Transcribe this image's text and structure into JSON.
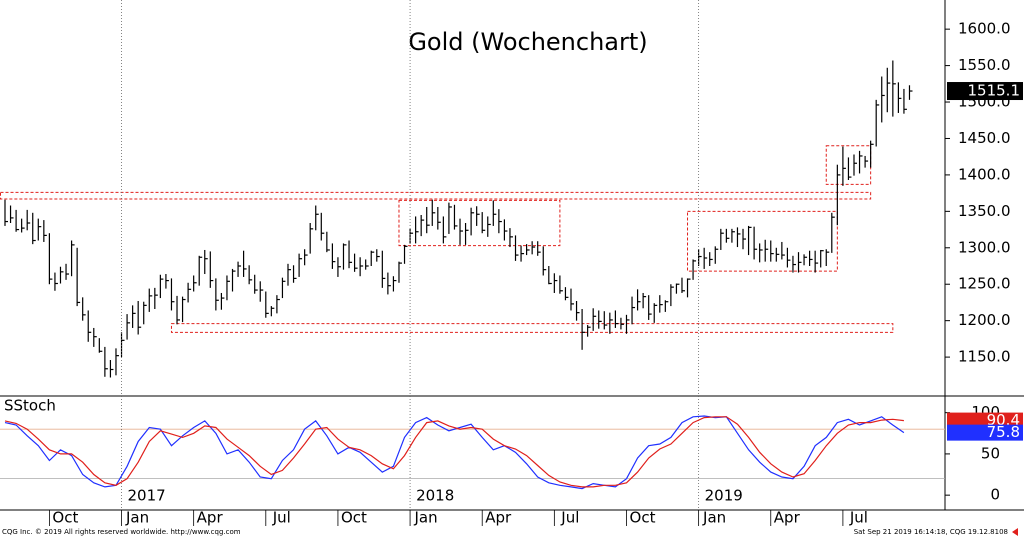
{
  "chart_data": [
    {
      "type": "ohlc",
      "title": "Gold (Wochenchart)",
      "color": "#000000",
      "grid": false,
      "xlim": [
        -0.9,
        169.4
      ],
      "ylim": [
        1098,
        1640
      ],
      "yticks": [
        {
          "value": 1150,
          "label": "1150.0"
        },
        {
          "value": 1200,
          "label": "1200.0"
        },
        {
          "value": 1250,
          "label": "1250.0"
        },
        {
          "value": 1300,
          "label": "1300.0"
        },
        {
          "value": 1350,
          "label": "1350.0"
        },
        {
          "value": 1400,
          "label": "1400.0"
        },
        {
          "value": 1450,
          "label": "1450.0"
        },
        {
          "value": 1500,
          "label": "1500.0"
        },
        {
          "value": 1550,
          "label": "1550.0"
        },
        {
          "value": 1600,
          "label": "1600.0"
        }
      ],
      "high": [
        1366,
        1358,
        1352,
        1340,
        1352,
        1348,
        1340,
        1338,
        1320,
        1266,
        1274,
        1278,
        1310,
        1300,
        1232,
        1214,
        1190,
        1176,
        1164,
        1146,
        1162,
        1184,
        1209,
        1221,
        1227,
        1226,
        1244,
        1245,
        1263,
        1264,
        1258,
        1234,
        1233,
        1252,
        1262,
        1289,
        1297,
        1295,
        1258,
        1238,
        1262,
        1271,
        1281,
        1296,
        1276,
        1263,
        1254,
        1240,
        1220,
        1235,
        1259,
        1278,
        1276,
        1292,
        1298,
        1334,
        1358,
        1348,
        1322,
        1306,
        1287,
        1306,
        1310,
        1292,
        1287,
        1284,
        1296,
        1298,
        1296,
        1266,
        1261,
        1281,
        1304,
        1326,
        1343,
        1345,
        1356,
        1366,
        1356,
        1343,
        1362,
        1359,
        1340,
        1334,
        1355,
        1357,
        1349,
        1343,
        1365,
        1353,
        1339,
        1327,
        1317,
        1303,
        1305,
        1309,
        1309,
        1302,
        1275,
        1265,
        1262,
        1246,
        1244,
        1227,
        1216,
        1194,
        1217,
        1214,
        1213,
        1211,
        1214,
        1204,
        1208,
        1233,
        1243,
        1238,
        1235,
        1224,
        1235,
        1228,
        1250,
        1251,
        1259,
        1258,
        1284,
        1298,
        1300,
        1294,
        1302,
        1326,
        1326,
        1326,
        1328,
        1326,
        1330,
        1329,
        1306,
        1311,
        1310,
        1300,
        1308,
        1300,
        1289,
        1294,
        1291,
        1296,
        1296,
        1297,
        1298,
        1348,
        1414,
        1439,
        1424,
        1428,
        1433,
        1426,
        1447,
        1503,
        1535,
        1547,
        1557,
        1527,
        1518,
        1523
      ],
      "low": [
        1330,
        1334,
        1322,
        1321,
        1324,
        1305,
        1310,
        1308,
        1250,
        1241,
        1251,
        1256,
        1261,
        1220,
        1200,
        1171,
        1164,
        1156,
        1123,
        1122,
        1125,
        1150,
        1174,
        1190,
        1181,
        1195,
        1212,
        1216,
        1231,
        1244,
        1214,
        1195,
        1198,
        1225,
        1240,
        1248,
        1264,
        1245,
        1214,
        1215,
        1228,
        1240,
        1260,
        1260,
        1250,
        1237,
        1226,
        1204,
        1206,
        1210,
        1231,
        1248,
        1252,
        1260,
        1276,
        1292,
        1324,
        1310,
        1294,
        1271,
        1260,
        1270,
        1272,
        1267,
        1261,
        1270,
        1275,
        1281,
        1245,
        1236,
        1240,
        1252,
        1278,
        1306,
        1306,
        1316,
        1320,
        1330,
        1325,
        1306,
        1319,
        1325,
        1304,
        1304,
        1317,
        1330,
        1320,
        1315,
        1330,
        1320,
        1310,
        1301,
        1282,
        1281,
        1290,
        1291,
        1289,
        1262,
        1250,
        1238,
        1237,
        1228,
        1214,
        1200,
        1160,
        1178,
        1186,
        1189,
        1188,
        1182,
        1190,
        1188,
        1182,
        1195,
        1214,
        1217,
        1201,
        1197,
        1211,
        1212,
        1220,
        1237,
        1238,
        1232,
        1256,
        1275,
        1271,
        1275,
        1278,
        1297,
        1307,
        1307,
        1301,
        1298,
        1290,
        1284,
        1280,
        1281,
        1281,
        1281,
        1284,
        1273,
        1266,
        1266,
        1276,
        1275,
        1266,
        1273,
        1275,
        1293,
        1331,
        1385,
        1393,
        1399,
        1402,
        1410,
        1410,
        1439,
        1472,
        1486,
        1480,
        1485,
        1484,
        1503
      ],
      "close": [
        1336,
        1341,
        1325,
        1327,
        1334,
        1310,
        1329,
        1317,
        1257,
        1251,
        1267,
        1264,
        1304,
        1225,
        1208,
        1184,
        1178,
        1158,
        1134,
        1133,
        1152,
        1173,
        1197,
        1210,
        1191,
        1221,
        1234,
        1235,
        1257,
        1255,
        1226,
        1201,
        1229,
        1243,
        1252,
        1287,
        1285,
        1255,
        1228,
        1231,
        1254,
        1268,
        1275,
        1271,
        1256,
        1242,
        1242,
        1210,
        1217,
        1229,
        1254,
        1270,
        1258,
        1285,
        1290,
        1326,
        1346,
        1320,
        1297,
        1281,
        1274,
        1304,
        1280,
        1272,
        1275,
        1275,
        1294,
        1288,
        1258,
        1248,
        1255,
        1279,
        1302,
        1320,
        1322,
        1338,
        1331,
        1348,
        1335,
        1315,
        1356,
        1330,
        1323,
        1324,
        1348,
        1346,
        1324,
        1332,
        1346,
        1336,
        1323,
        1315,
        1290,
        1292,
        1297,
        1301,
        1294,
        1270,
        1251,
        1255,
        1241,
        1232,
        1223,
        1211,
        1184,
        1191,
        1206,
        1199,
        1194,
        1201,
        1196,
        1195,
        1201,
        1218,
        1226,
        1233,
        1209,
        1221,
        1222,
        1226,
        1246,
        1250,
        1241,
        1257,
        1282,
        1288,
        1286,
        1284,
        1298,
        1320,
        1313,
        1322,
        1319,
        1312,
        1328,
        1298,
        1297,
        1298,
        1292,
        1291,
        1290,
        1283,
        1277,
        1280,
        1287,
        1284,
        1279,
        1296,
        1294,
        1342,
        1400,
        1409,
        1397,
        1416,
        1426,
        1419,
        1442,
        1496,
        1509,
        1526,
        1525,
        1505,
        1490,
        1515.1
      ],
      "boxes": [
        {
          "x": [
            -1,
            156
          ],
          "y": [
            1367,
            1376
          ]
        },
        {
          "x": [
            30,
            160
          ],
          "y": [
            1184,
            1196
          ]
        },
        {
          "x": [
            71,
            100
          ],
          "y": [
            1303,
            1365
          ]
        },
        {
          "x": [
            123,
            150
          ],
          "y": [
            1268,
            1350
          ]
        },
        {
          "x": [
            148,
            156
          ],
          "y": [
            1387,
            1440
          ]
        }
      ],
      "box_color": "#e0201c"
    },
    {
      "type": "line",
      "title": "SStoch",
      "xlim": [
        -0.9,
        169.4
      ],
      "ylim": [
        -18,
        119
      ],
      "yticks": [
        0,
        50,
        100
      ],
      "hlines": [
        80,
        20
      ],
      "x": [
        0,
        2,
        4,
        6,
        8,
        10,
        12,
        14,
        16,
        18,
        20,
        22,
        24,
        26,
        28,
        30,
        32,
        34,
        36,
        38,
        40,
        42,
        44,
        46,
        48,
        50,
        52,
        54,
        56,
        58,
        60,
        62,
        64,
        66,
        68,
        70,
        72,
        74,
        76,
        78,
        80,
        82,
        84,
        86,
        88,
        90,
        92,
        94,
        96,
        98,
        100,
        102,
        104,
        106,
        108,
        110,
        112,
        114,
        116,
        118,
        120,
        122,
        124,
        126,
        128,
        130,
        132,
        134,
        136,
        138,
        140,
        142,
        144,
        146,
        148,
        150,
        152,
        154,
        156,
        158,
        160,
        162
      ],
      "series": [
        {
          "color": "#2030ff",
          "values": [
            88,
            85,
            72,
            60,
            42,
            55,
            48,
            25,
            15,
            10,
            12,
            35,
            65,
            82,
            80,
            60,
            72,
            82,
            90,
            75,
            50,
            55,
            40,
            22,
            20,
            42,
            55,
            80,
            90,
            72,
            50,
            58,
            52,
            40,
            28,
            35,
            70,
            88,
            94,
            85,
            78,
            82,
            86,
            70,
            55,
            60,
            52,
            38,
            22,
            15,
            12,
            10,
            8,
            14,
            12,
            10,
            20,
            45,
            60,
            62,
            70,
            88,
            95,
            96,
            94,
            95,
            75,
            55,
            40,
            28,
            22,
            20,
            35,
            60,
            70,
            88,
            92,
            85,
            90,
            95,
            85,
            75.8
          ]
        },
        {
          "color": "#e0201c",
          "values": [
            90,
            87,
            80,
            68,
            55,
            50,
            50,
            40,
            25,
            15,
            12,
            20,
            40,
            65,
            78,
            74,
            70,
            75,
            84,
            82,
            68,
            58,
            48,
            35,
            25,
            30,
            45,
            62,
            80,
            82,
            68,
            58,
            55,
            48,
            38,
            32,
            48,
            70,
            88,
            90,
            84,
            80,
            82,
            80,
            68,
            60,
            56,
            48,
            36,
            24,
            16,
            12,
            10,
            10,
            12,
            12,
            15,
            28,
            45,
            56,
            62,
            75,
            88,
            94,
            95,
            95,
            86,
            70,
            52,
            38,
            28,
            22,
            26,
            42,
            60,
            75,
            85,
            88,
            88,
            91,
            92,
            90.4
          ]
        }
      ],
      "xticks": [
        {
          "value": 8,
          "label": "Oct"
        },
        {
          "value": 21,
          "label": "Jan"
        },
        {
          "value": 34,
          "label": "Apr"
        },
        {
          "value": 47,
          "label": "Jul"
        },
        {
          "value": 60,
          "label": "Oct"
        },
        {
          "value": 73,
          "label": "Jan"
        },
        {
          "value": 86,
          "label": "Apr"
        },
        {
          "value": 99,
          "label": "Jul"
        },
        {
          "value": 112,
          "label": "Oct"
        },
        {
          "value": 125,
          "label": "Jan"
        },
        {
          "value": 138,
          "label": "Apr"
        },
        {
          "value": 151,
          "label": "Jul"
        }
      ],
      "year_ticks": [
        {
          "value": 21,
          "label": "2017"
        },
        {
          "value": 73,
          "label": "2018"
        },
        {
          "value": 125,
          "label": "2019"
        }
      ]
    }
  ],
  "footer": {
    "left": "CQG Inc. © 2019 All rights reserved worldwide. http://www.cqg.com",
    "right": "Sat Sep 21 2019 16:14:18, CQG 19.12.8108"
  }
}
